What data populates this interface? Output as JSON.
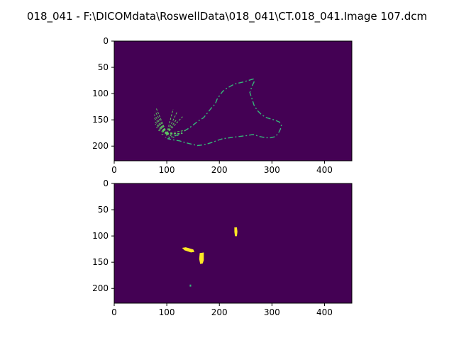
{
  "figure": {
    "suptitle": "018_041 - F:\\DICOMdata\\RoswellData\\018_041\\CT.018_041.Image 107.dcm",
    "background_color": "#440154",
    "colormap": "viridis"
  },
  "chart_data": [
    {
      "type": "heatmap",
      "title": "",
      "xlabel": "",
      "ylabel": "",
      "xlim": [
        0,
        452
      ],
      "ylim": [
        228,
        0
      ],
      "x_ticks": [
        0,
        100,
        200,
        300,
        400
      ],
      "y_ticks": [
        0,
        50,
        100,
        150,
        200
      ],
      "description_values": "binary mask; background 0 (dark purple), edge pixels high (teal/yellow)",
      "outline": [
        [
          265,
          72
        ],
        [
          245,
          78
        ],
        [
          228,
          82
        ],
        [
          214,
          90
        ],
        [
          206,
          96
        ],
        [
          196,
          110
        ],
        [
          192,
          120
        ],
        [
          186,
          126
        ],
        [
          178,
          136
        ],
        [
          170,
          146
        ],
        [
          160,
          152
        ],
        [
          150,
          160
        ],
        [
          142,
          166
        ],
        [
          132,
          172
        ],
        [
          122,
          178
        ],
        [
          112,
          182
        ],
        [
          102,
          186
        ],
        [
          112,
          188
        ],
        [
          124,
          190
        ],
        [
          134,
          193
        ],
        [
          146,
          196
        ],
        [
          158,
          199
        ],
        [
          166,
          198
        ],
        [
          176,
          196
        ],
        [
          186,
          193
        ],
        [
          194,
          190
        ],
        [
          206,
          186
        ],
        [
          220,
          184
        ],
        [
          236,
          182
        ],
        [
          252,
          180
        ],
        [
          264,
          178
        ],
        [
          278,
          182
        ],
        [
          288,
          184
        ],
        [
          298,
          184
        ],
        [
          306,
          182
        ],
        [
          312,
          176
        ],
        [
          316,
          168
        ],
        [
          318,
          160
        ],
        [
          314,
          154
        ],
        [
          304,
          150
        ],
        [
          290,
          146
        ],
        [
          280,
          140
        ],
        [
          272,
          132
        ],
        [
          266,
          122
        ],
        [
          262,
          110
        ],
        [
          258,
          98
        ],
        [
          262,
          86
        ],
        [
          266,
          78
        ],
        [
          265,
          72
        ]
      ],
      "outline_color": "#35b779",
      "fan_origin": [
        100,
        176
      ],
      "fan_ends": [
        [
          80,
          128
        ],
        [
          78,
          134
        ],
        [
          76,
          140
        ],
        [
          76,
          146
        ],
        [
          76,
          152
        ],
        [
          78,
          158
        ],
        [
          80,
          164
        ],
        [
          84,
          170
        ],
        [
          90,
          178
        ],
        [
          98,
          184
        ],
        [
          106,
          186
        ],
        [
          114,
          184
        ],
        [
          122,
          180
        ],
        [
          130,
          176
        ],
        [
          136,
          170
        ],
        [
          118,
          150
        ],
        [
          130,
          144
        ],
        [
          120,
          134
        ],
        [
          112,
          130
        ]
      ],
      "fan_color": "#5ec962"
    },
    {
      "type": "heatmap",
      "title": "",
      "xlabel": "",
      "ylabel": "",
      "xlim": [
        0,
        452
      ],
      "ylim": [
        228,
        0
      ],
      "x_ticks": [
        0,
        100,
        200,
        300,
        400
      ],
      "y_ticks": [
        0,
        50,
        100,
        150,
        200
      ],
      "blobs": [
        {
          "points": [
            [
              130,
              123
            ],
            [
              136,
              122
            ],
            [
              150,
              126
            ],
            [
              152,
              130
            ],
            [
              146,
              131
            ],
            [
              134,
              127
            ]
          ],
          "color": "#fde725"
        },
        {
          "points": [
            [
              163,
              133
            ],
            [
              170,
              132
            ],
            [
              170,
              146
            ],
            [
              168,
              152
            ],
            [
              164,
              153
            ],
            [
              162,
              144
            ]
          ],
          "color": "#fde725"
        },
        {
          "points": [
            [
              229,
              84
            ],
            [
              233,
              84
            ],
            [
              234,
              92
            ],
            [
              233,
              100
            ],
            [
              230,
              100
            ],
            [
              229,
              92
            ]
          ],
          "color": "#fde725"
        },
        {
          "points": [
            [
              144,
              193
            ],
            [
              146,
              193
            ],
            [
              146,
              196
            ],
            [
              144,
              196
            ]
          ],
          "color": "#35b779"
        }
      ]
    }
  ]
}
